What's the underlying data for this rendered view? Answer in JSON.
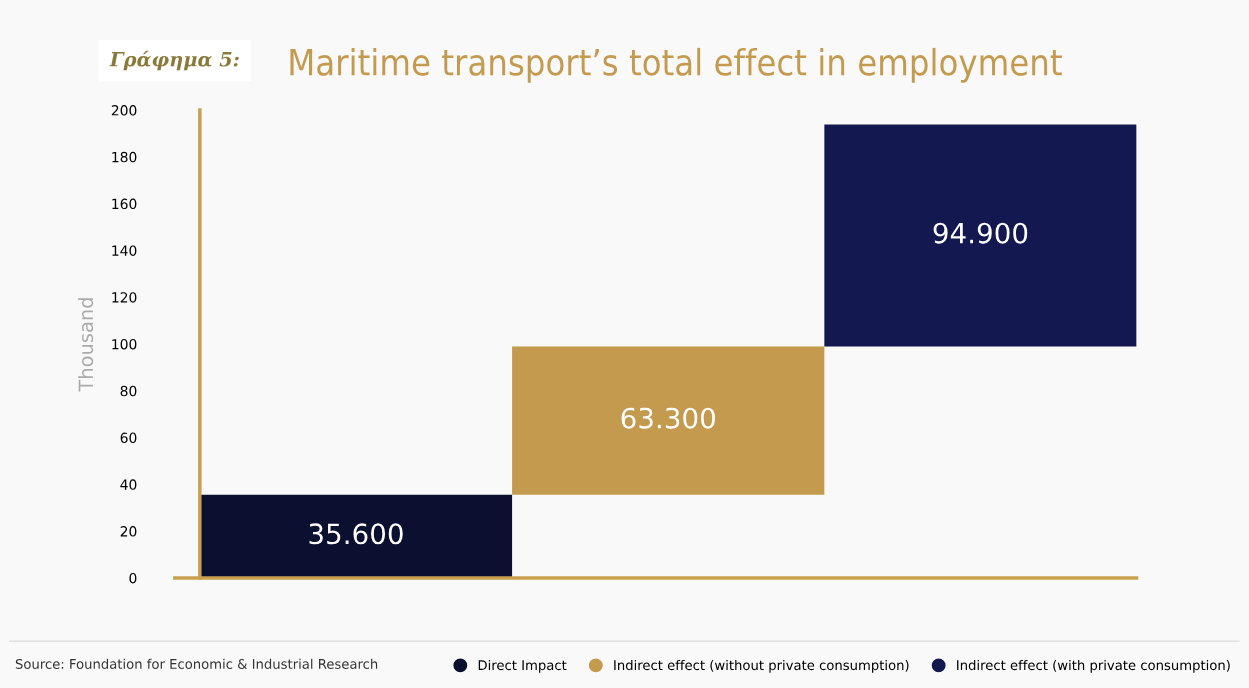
{
  "chart_data": {
    "type": "bar",
    "title": "Maritime transport’s total effect in employment",
    "ylabel": "Thousand",
    "categories": [
      null,
      null,
      null
    ],
    "series": [
      {
        "name": "Direct Impact",
        "color": "#0b1030",
        "values": [
          35.6,
          null,
          null
        ],
        "base": [
          0,
          null,
          null
        ],
        "value_labels": [
          "35.600",
          null,
          null
        ]
      },
      {
        "name": "Indirect effect (without private consumption)",
        "color": "#c49a4e",
        "values": [
          null,
          63.3,
          null
        ],
        "base": [
          null,
          35.6,
          null
        ],
        "value_labels": [
          null,
          "63.300",
          null
        ]
      },
      {
        "name": "Indirect effect (with private consumption)",
        "color": "#141850",
        "values": [
          null,
          null,
          94.9
        ],
        "base": [
          null,
          null,
          98.9
        ],
        "value_labels": [
          null,
          null,
          "94.900"
        ]
      }
    ],
    "ylim": [
      0,
      200
    ],
    "yticks": [
      0,
      20,
      40,
      60,
      80,
      100,
      120,
      140,
      160,
      180,
      200
    ],
    "grid": false,
    "legend": "bottom",
    "marker": "circle",
    "annotations": [
      "Γράφημα 5:",
      "Source: Foundation for Economic & Industrial Research"
    ]
  }
}
